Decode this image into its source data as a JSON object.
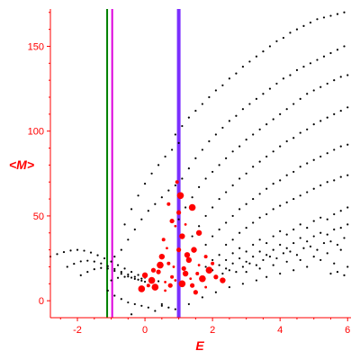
{
  "chart_data": {
    "type": "scatter",
    "title": "",
    "xlabel": "E",
    "ylabel": "<M>",
    "xlim": [
      -2.8,
      6.1
    ],
    "ylim": [
      -10,
      172
    ],
    "x_ticks": [
      -2,
      0,
      2,
      4,
      6
    ],
    "y_ticks": [
      0,
      50,
      100,
      150
    ],
    "axis_color": "#ff0000",
    "grid": false,
    "legend": "none",
    "vertical_lines": [
      {
        "x": -1.12,
        "color": "#008000"
      },
      {
        "x": -0.97,
        "color": "#dd00dd"
      },
      {
        "x": 1.0,
        "color": "#7b2fff"
      }
    ],
    "black_dots": [
      [
        -2.8,
        26
      ],
      [
        -2.6,
        27.5
      ],
      [
        -2.4,
        28.7
      ],
      [
        -2.2,
        29.6
      ],
      [
        -2.0,
        30
      ],
      [
        -1.8,
        29.5
      ],
      [
        -1.6,
        28.4
      ],
      [
        -1.4,
        26.8
      ],
      [
        -1.2,
        25
      ],
      [
        -1.0,
        23.1
      ],
      [
        -0.8,
        21
      ],
      [
        -0.6,
        19
      ],
      [
        -0.4,
        17
      ],
      [
        -0.2,
        15.2
      ],
      [
        0.0,
        13.6
      ],
      [
        0.2,
        12.4
      ],
      [
        0.4,
        11.5
      ],
      [
        -2.3,
        20
      ],
      [
        -2.1,
        21.8
      ],
      [
        -1.9,
        23.2
      ],
      [
        -1.7,
        23.6
      ],
      [
        -1.5,
        23.1
      ],
      [
        -1.3,
        22
      ],
      [
        -1.1,
        20.4
      ],
      [
        -0.9,
        18.7
      ],
      [
        -0.7,
        17
      ],
      [
        -0.5,
        15.5
      ],
      [
        -0.3,
        14.1
      ],
      [
        -0.1,
        13
      ],
      [
        -1.9,
        15
      ],
      [
        -1.7,
        17
      ],
      [
        -1.5,
        18.6
      ],
      [
        -1.3,
        19.3
      ],
      [
        -1.1,
        19
      ],
      [
        -0.9,
        17.6
      ],
      [
        -0.7,
        15.9
      ],
      [
        -0.5,
        14.3
      ],
      [
        -0.3,
        12.9
      ],
      [
        -0.1,
        11.8
      ],
      [
        -1.0,
        12
      ],
      [
        -0.8,
        13.5
      ],
      [
        -0.6,
        14.1
      ],
      [
        -0.4,
        13.6
      ],
      [
        -0.2,
        12.4
      ],
      [
        0.0,
        11.2
      ],
      [
        -1.1,
        6
      ],
      [
        -0.9,
        3
      ],
      [
        -0.7,
        1
      ],
      [
        -0.5,
        -1
      ],
      [
        -0.3,
        -2
      ],
      [
        -0.1,
        -3
      ],
      [
        0.1,
        -4
      ],
      [
        -0.4,
        -8
      ],
      [
        0.3,
        -6
      ],
      [
        0.5,
        -2
      ],
      [
        0.7,
        -4
      ],
      [
        -0.9,
        26
      ],
      [
        -0.7,
        30
      ],
      [
        -0.5,
        36
      ],
      [
        -0.3,
        42
      ],
      [
        -0.1,
        48
      ],
      [
        0.1,
        53
      ],
      [
        0.3,
        57
      ],
      [
        0.5,
        61
      ],
      [
        0.7,
        65
      ],
      [
        0.9,
        68
      ],
      [
        -0.6,
        45
      ],
      [
        -0.4,
        54
      ],
      [
        -0.2,
        62
      ],
      [
        0.0,
        69
      ],
      [
        0.2,
        75
      ],
      [
        0.4,
        80
      ],
      [
        0.6,
        85
      ],
      [
        0.8,
        89
      ],
      [
        1.0,
        93
      ],
      [
        0.9,
        98
      ],
      [
        1.1,
        103
      ],
      [
        1.3,
        108
      ],
      [
        1.5,
        112
      ],
      [
        1.7,
        116
      ],
      [
        1.9,
        120
      ],
      [
        2.1,
        124
      ],
      [
        2.3,
        127
      ],
      [
        2.5,
        131
      ],
      [
        2.7,
        134
      ],
      [
        2.9,
        138
      ],
      [
        3.1,
        141
      ],
      [
        3.3,
        144
      ],
      [
        3.5,
        147
      ],
      [
        3.7,
        150
      ],
      [
        3.9,
        153
      ],
      [
        4.1,
        155
      ],
      [
        4.3,
        158
      ],
      [
        4.5,
        160
      ],
      [
        4.7,
        162
      ],
      [
        4.9,
        164
      ],
      [
        5.1,
        166
      ],
      [
        5.3,
        167
      ],
      [
        5.5,
        168
      ],
      [
        5.7,
        169
      ],
      [
        5.9,
        170
      ],
      [
        1.1,
        72
      ],
      [
        1.3,
        78
      ],
      [
        1.5,
        84
      ],
      [
        1.7,
        89
      ],
      [
        1.9,
        94
      ],
      [
        2.1,
        98
      ],
      [
        2.3,
        102
      ],
      [
        2.5,
        106
      ],
      [
        2.7,
        109
      ],
      [
        2.9,
        113
      ],
      [
        3.1,
        116
      ],
      [
        3.3,
        119
      ],
      [
        3.5,
        122
      ],
      [
        3.7,
        125
      ],
      [
        3.9,
        128
      ],
      [
        4.1,
        131
      ],
      [
        4.3,
        133
      ],
      [
        4.5,
        136
      ],
      [
        4.7,
        138
      ],
      [
        4.9,
        140
      ],
      [
        5.1,
        142
      ],
      [
        5.3,
        144
      ],
      [
        5.5,
        146
      ],
      [
        5.7,
        148
      ],
      [
        5.9,
        150
      ],
      [
        1.0,
        48
      ],
      [
        1.2,
        55
      ],
      [
        1.4,
        61
      ],
      [
        1.6,
        67
      ],
      [
        1.8,
        72
      ],
      [
        2.0,
        76
      ],
      [
        2.2,
        80
      ],
      [
        2.4,
        84
      ],
      [
        2.6,
        88
      ],
      [
        2.8,
        91
      ],
      [
        3.0,
        95
      ],
      [
        3.2,
        98
      ],
      [
        3.4,
        101
      ],
      [
        3.6,
        104
      ],
      [
        3.8,
        107
      ],
      [
        4.0,
        110
      ],
      [
        4.2,
        113
      ],
      [
        4.4,
        116
      ],
      [
        4.6,
        119
      ],
      [
        4.8,
        122
      ],
      [
        5.0,
        124
      ],
      [
        5.2,
        126
      ],
      [
        5.4,
        128
      ],
      [
        5.6,
        130
      ],
      [
        5.8,
        132
      ],
      [
        6.0,
        133
      ],
      [
        1.4,
        38
      ],
      [
        1.6,
        44
      ],
      [
        1.8,
        50
      ],
      [
        2.0,
        55
      ],
      [
        2.2,
        60
      ],
      [
        2.4,
        64
      ],
      [
        2.6,
        68
      ],
      [
        2.8,
        72
      ],
      [
        3.0,
        75
      ],
      [
        3.2,
        79
      ],
      [
        3.4,
        82
      ],
      [
        3.6,
        85
      ],
      [
        3.8,
        88
      ],
      [
        4.0,
        91
      ],
      [
        4.2,
        94
      ],
      [
        4.4,
        96
      ],
      [
        4.6,
        99
      ],
      [
        4.8,
        101
      ],
      [
        5.0,
        104
      ],
      [
        5.2,
        106
      ],
      [
        5.4,
        108
      ],
      [
        5.6,
        110
      ],
      [
        5.8,
        112
      ],
      [
        6.0,
        114
      ],
      [
        1.8,
        33
      ],
      [
        2.0,
        38
      ],
      [
        2.2,
        42
      ],
      [
        2.4,
        46
      ],
      [
        2.6,
        50
      ],
      [
        2.8,
        54
      ],
      [
        3.0,
        57
      ],
      [
        3.2,
        60
      ],
      [
        3.4,
        63
      ],
      [
        3.6,
        66
      ],
      [
        3.8,
        69
      ],
      [
        4.0,
        71
      ],
      [
        4.2,
        74
      ],
      [
        4.4,
        76
      ],
      [
        4.6,
        79
      ],
      [
        4.8,
        81
      ],
      [
        5.0,
        83
      ],
      [
        5.2,
        85
      ],
      [
        5.4,
        87
      ],
      [
        5.6,
        89
      ],
      [
        5.8,
        91
      ],
      [
        6.0,
        92
      ],
      [
        2.4,
        33
      ],
      [
        2.6,
        36
      ],
      [
        2.8,
        40
      ],
      [
        3.0,
        43
      ],
      [
        3.2,
        46
      ],
      [
        3.4,
        49
      ],
      [
        3.6,
        51
      ],
      [
        3.8,
        54
      ],
      [
        4.0,
        56
      ],
      [
        4.2,
        58
      ],
      [
        4.4,
        60
      ],
      [
        4.6,
        62
      ],
      [
        4.8,
        64
      ],
      [
        5.0,
        66
      ],
      [
        5.2,
        68
      ],
      [
        5.4,
        70
      ],
      [
        5.6,
        71
      ],
      [
        5.8,
        73
      ],
      [
        6.0,
        74
      ],
      [
        1.8,
        20
      ],
      [
        2.0,
        24
      ],
      [
        2.2,
        27
      ],
      [
        2.4,
        24
      ],
      [
        2.6,
        28
      ],
      [
        2.8,
        31
      ],
      [
        3.0,
        29
      ],
      [
        3.2,
        33
      ],
      [
        3.4,
        36
      ],
      [
        3.6,
        34
      ],
      [
        3.8,
        38
      ],
      [
        4.0,
        41
      ],
      [
        4.2,
        39
      ],
      [
        4.4,
        42
      ],
      [
        4.6,
        45
      ],
      [
        4.8,
        43
      ],
      [
        5.0,
        47
      ],
      [
        5.2,
        49
      ],
      [
        5.4,
        48
      ],
      [
        5.6,
        51
      ],
      [
        5.8,
        53
      ],
      [
        6.0,
        55
      ],
      [
        2.0,
        18
      ],
      [
        2.2,
        21
      ],
      [
        2.4,
        19
      ],
      [
        2.6,
        22
      ],
      [
        2.8,
        25
      ],
      [
        3.0,
        23
      ],
      [
        3.2,
        26
      ],
      [
        3.4,
        29
      ],
      [
        3.6,
        27
      ],
      [
        3.8,
        30
      ],
      [
        4.0,
        33
      ],
      [
        4.2,
        31
      ],
      [
        4.4,
        34
      ],
      [
        4.6,
        37
      ],
      [
        4.8,
        35
      ],
      [
        5.0,
        38
      ],
      [
        5.2,
        40
      ],
      [
        5.4,
        39
      ],
      [
        5.6,
        42
      ],
      [
        5.8,
        43
      ],
      [
        6.0,
        45
      ],
      [
        2.3,
        16
      ],
      [
        2.5,
        18
      ],
      [
        2.7,
        17
      ],
      [
        2.9,
        20
      ],
      [
        3.1,
        22
      ],
      [
        3.3,
        21
      ],
      [
        3.5,
        24
      ],
      [
        3.7,
        26
      ],
      [
        3.9,
        25
      ],
      [
        4.1,
        28
      ],
      [
        4.3,
        29
      ],
      [
        4.5,
        27
      ],
      [
        4.7,
        31
      ],
      [
        4.9,
        32
      ],
      [
        5.1,
        30
      ],
      [
        5.3,
        34
      ],
      [
        5.5,
        35
      ],
      [
        5.7,
        33
      ],
      [
        5.9,
        37
      ],
      [
        3.0,
        17
      ],
      [
        3.4,
        19
      ],
      [
        3.8,
        21
      ],
      [
        4.2,
        23
      ],
      [
        4.6,
        24
      ],
      [
        5.0,
        26
      ],
      [
        5.4,
        28
      ],
      [
        5.8,
        30
      ],
      [
        6.0,
        20
      ],
      [
        5.6,
        22
      ],
      [
        5.2,
        24
      ],
      [
        4.8,
        20
      ],
      [
        4.4,
        18
      ],
      [
        4.0,
        16
      ],
      [
        3.6,
        14
      ],
      [
        0.5,
        -3
      ],
      [
        0.9,
        -5
      ],
      [
        1.3,
        -2
      ],
      [
        1.7,
        2
      ],
      [
        2.1,
        5
      ],
      [
        2.5,
        8
      ],
      [
        2.9,
        10
      ],
      [
        3.3,
        12
      ],
      [
        5.9,
        15
      ],
      [
        5.7,
        17
      ],
      [
        5.5,
        16
      ]
    ],
    "red_points": [
      [
        0.9,
        12
      ],
      [
        1.0,
        30
      ],
      [
        1.1,
        10
      ],
      [
        0.8,
        14
      ],
      [
        1.2,
        16
      ],
      [
        0.6,
        11
      ],
      [
        1.4,
        9
      ],
      [
        0.3,
        8
      ],
      [
        0.7,
        22
      ],
      [
        1.3,
        24
      ],
      [
        1.6,
        21
      ],
      [
        0.4,
        17
      ],
      [
        0.2,
        12
      ],
      [
        1.8,
        26
      ],
      [
        1.1,
        38
      ],
      [
        0.9,
        44
      ],
      [
        1.0,
        52
      ],
      [
        1.05,
        62
      ],
      [
        0.95,
        70
      ],
      [
        0.5,
        26
      ],
      [
        0.6,
        6
      ],
      [
        1.5,
        5
      ],
      [
        1.7,
        13
      ],
      [
        0.1,
        9
      ],
      [
        1.25,
        27
      ],
      [
        0.85,
        20
      ],
      [
        1.15,
        19
      ],
      [
        1.9,
        18
      ],
      [
        2.0,
        22
      ],
      [
        0.0,
        15
      ],
      [
        1.35,
        13
      ],
      [
        0.75,
        9
      ],
      [
        0.45,
        21
      ],
      [
        1.55,
        16
      ],
      [
        1.45,
        30
      ],
      [
        0.65,
        31
      ],
      [
        2.1,
        14
      ],
      [
        -0.1,
        7
      ],
      [
        0.55,
        36
      ],
      [
        1.6,
        40
      ],
      [
        1.2,
        45
      ],
      [
        0.8,
        47
      ],
      [
        1.4,
        55
      ],
      [
        0.7,
        57
      ],
      [
        2.3,
        12
      ],
      [
        1.8,
        8
      ],
      [
        0.25,
        18
      ]
    ]
  }
}
